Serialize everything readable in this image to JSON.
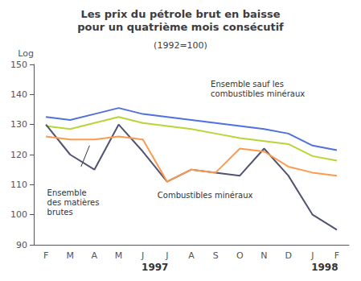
{
  "chart_data": {
    "type": "line",
    "title": "Les prix du pétrole brut en baisse\npour un quatrième mois consécutif",
    "subtitle": "(1992=100)",
    "y_label": "Log",
    "categories": [
      "F",
      "M",
      "A",
      "M",
      "J",
      "J",
      "A",
      "S",
      "O",
      "N",
      "D",
      "J",
      "F"
    ],
    "series": [
      {
        "values": [
          132.5,
          131.5,
          133.5,
          135.5,
          133.5,
          132.5,
          131.5,
          130.5,
          129.5,
          128.5,
          127.0,
          123.0,
          121.5
        ]
      },
      {
        "values": [
          129.5,
          128.5,
          130.5,
          132.5,
          130.5,
          129.5,
          128.5,
          127.0,
          125.5,
          124.5,
          123.5,
          119.5,
          118.0
        ]
      },
      {
        "values": [
          130,
          120,
          115,
          130,
          121,
          111,
          115,
          114,
          113,
          122,
          113,
          100,
          95
        ]
      },
      {
        "values": [
          126,
          125,
          125,
          126,
          125,
          111,
          115,
          114,
          122,
          121,
          116,
          114,
          113
        ]
      }
    ],
    "annotations": [
      "Ensemble sauf les\ncombustibles minéraux",
      "Ensemble\ndes matières\nbrutes",
      "Combustibles minéraux",
      "1997",
      "1998"
    ],
    "ylim": [
      90,
      150
    ],
    "yticks": [
      90,
      100,
      110,
      120,
      130,
      140,
      150
    ],
    "grid": false,
    "marker": "none"
  }
}
